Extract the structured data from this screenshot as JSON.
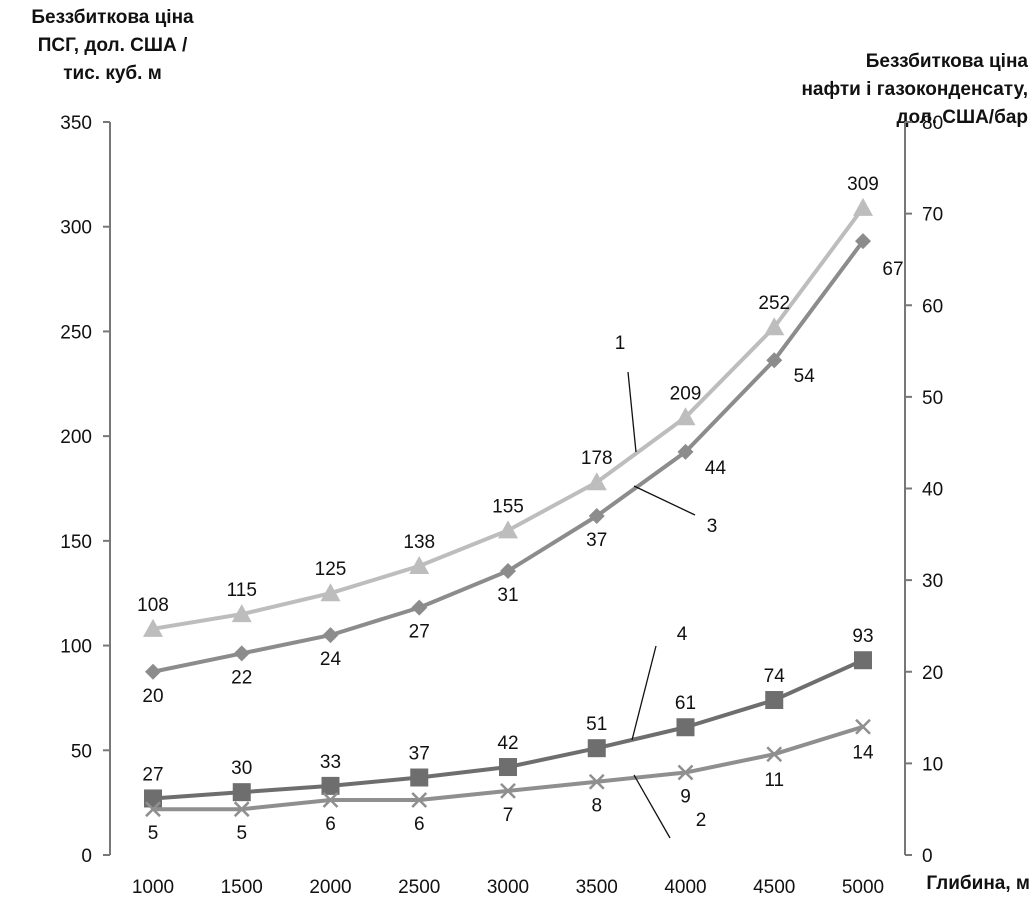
{
  "chart_data": {
    "type": "line",
    "x": [
      1000,
      1500,
      2000,
      2500,
      3000,
      3500,
      4000,
      4500,
      5000
    ],
    "xlabel": "Глибина, м",
    "y_left": {
      "label_lines": [
        "Беззбиткова ціна",
        "ПСГ, дол. США /",
        "тис. куб. м"
      ],
      "range": [
        0,
        350
      ],
      "ticks": [
        0,
        50,
        100,
        150,
        200,
        250,
        300,
        350
      ]
    },
    "y_right": {
      "label_lines": [
        "Беззбиткова ціна",
        "нафти і газоконденсату,",
        "дол. США/бар"
      ],
      "range": [
        0,
        80
      ],
      "ticks": [
        0,
        10,
        20,
        30,
        40,
        50,
        60,
        70,
        80
      ]
    },
    "series": [
      {
        "id": "1",
        "axis": "left",
        "marker": "triangle",
        "color": "#bdbdbd",
        "labels_pos": "above",
        "values": [
          108,
          115,
          125,
          138,
          155,
          178,
          209,
          252,
          309
        ]
      },
      {
        "id": "3",
        "axis": "right",
        "marker": "diamond",
        "color": "#8c8c8c",
        "labels_pos": "below",
        "values": [
          20,
          22,
          24,
          27,
          31,
          37,
          44,
          54,
          67
        ]
      },
      {
        "id": "4",
        "axis": "left",
        "marker": "square",
        "color": "#6e6e6e",
        "labels_pos": "above",
        "values": [
          27,
          30,
          33,
          37,
          42,
          51,
          61,
          74,
          93
        ]
      },
      {
        "id": "2",
        "axis": "right",
        "marker": "x",
        "color": "#8f8f8f",
        "labels_pos": "below",
        "values": [
          5,
          5,
          6,
          6,
          7,
          8,
          9,
          11,
          14
        ]
      }
    ],
    "annotations": [
      "1",
      "3",
      "4",
      "2"
    ],
    "grid": false,
    "legend": "none"
  }
}
